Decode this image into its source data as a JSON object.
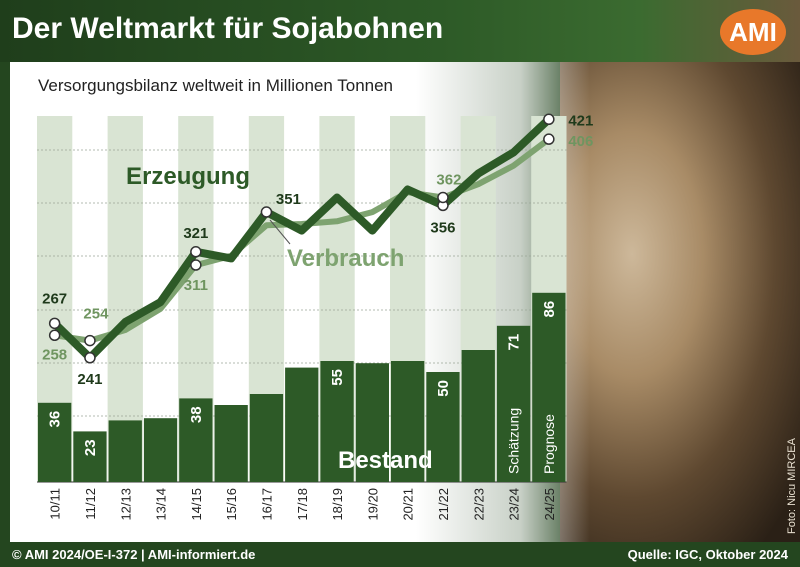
{
  "header": {
    "title": "Der Weltmarkt für Sojabohnen",
    "logo": "AMI"
  },
  "subtitle": "Versorgungsbilanz weltweit in Millionen Tonnen",
  "photo_credit": "Foto: Nicu MIRCEA",
  "footer": {
    "left": "© AMI 2024/OE-I-372 | AMI-informiert.de",
    "right": "Quelle: IGC, Oktober 2024"
  },
  "colors": {
    "dark_green": "#2d5a27",
    "light_green": "#7ea370",
    "column_bg": "#d9e4d3",
    "header_green": "#1f3e1b",
    "logo_orange": "#e8782a"
  },
  "chart_data": {
    "type": "bar",
    "categories": [
      "10/11",
      "11/12",
      "12/13",
      "13/14",
      "14/15",
      "15/16",
      "16/17",
      "17/18",
      "18/19",
      "19/20",
      "20/21",
      "21/22",
      "22/23",
      "23/24",
      "24/25"
    ],
    "series": [
      {
        "name": "Erzeugung",
        "type": "line",
        "values": [
          267,
          241,
          268,
          283,
          321,
          316,
          351,
          337,
          362,
          337,
          368,
          356,
          380,
          396,
          421
        ]
      },
      {
        "name": "Verbrauch",
        "type": "line",
        "values": [
          258,
          254,
          262,
          278,
          311,
          318,
          341,
          342,
          344,
          351,
          366,
          362,
          372,
          386,
          406
        ]
      },
      {
        "name": "Bestand",
        "type": "bar",
        "values": [
          36,
          23,
          28,
          29,
          38,
          35,
          40,
          52,
          55,
          54,
          55,
          50,
          60,
          71,
          86
        ]
      }
    ],
    "point_labels": {
      "Erzeugung": {
        "10/11": "267",
        "11/12": "241",
        "14/15": "321",
        "16/17": "351",
        "21/22": "356",
        "24/25": "421"
      },
      "Verbrauch": {
        "10/11": "258",
        "11/12": "254",
        "14/15": "311",
        "21/22": "362",
        "24/25": "406"
      },
      "Bestand": {
        "10/11": "36",
        "11/12": "23",
        "14/15": "38",
        "18/19": "55",
        "21/22": "50",
        "23/24": "71",
        "24/25": "86"
      }
    },
    "bar_annotations": {
      "23/24": "Schätzung",
      "24/25": "Prognose"
    },
    "series_labels": {
      "Erzeugung": "Erzeugung",
      "Verbrauch": "Verbrauch",
      "Bestand": "Bestand"
    },
    "grid": true,
    "legend": "none"
  }
}
